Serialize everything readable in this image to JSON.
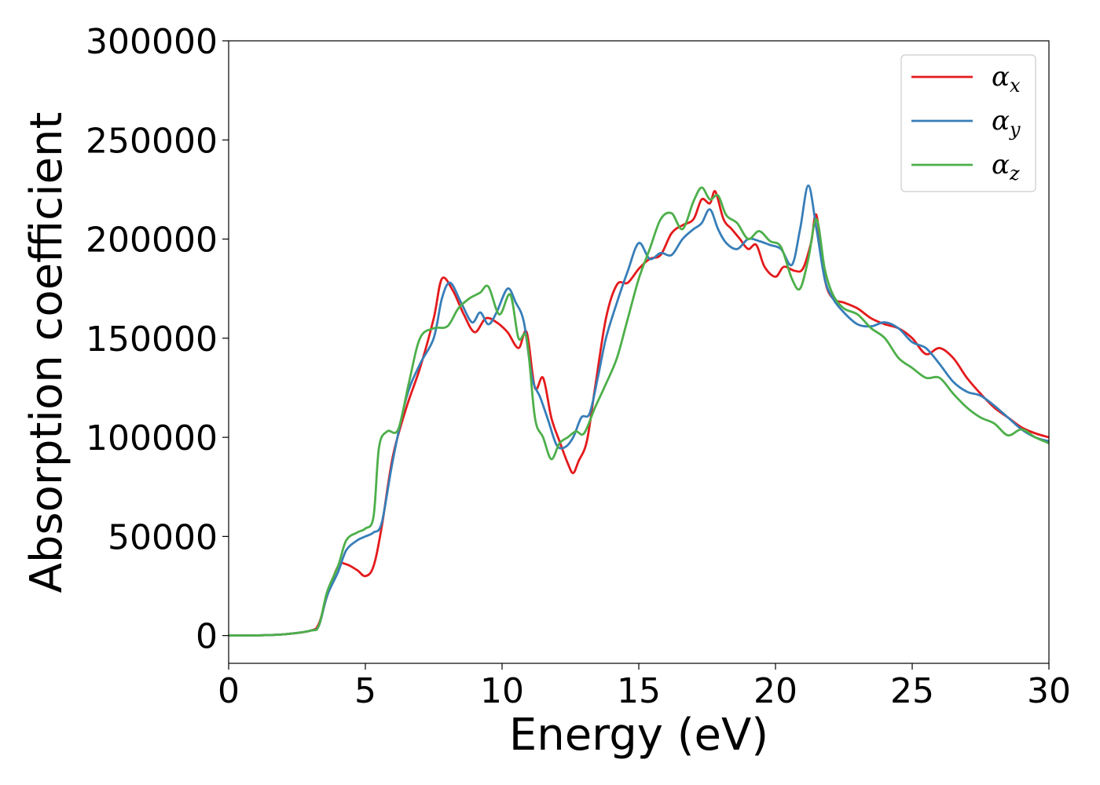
{
  "chart_data": {
    "type": "line",
    "xlabel": "Energy (eV)",
    "ylabel": "Absorption coefficient",
    "xlim": [
      0,
      30
    ],
    "ylim": [
      -14000,
      300000
    ],
    "xticks": [
      0,
      5,
      10,
      15,
      20,
      25,
      30
    ],
    "xtick_labels": [
      "0",
      "5",
      "10",
      "15",
      "20",
      "25",
      "30"
    ],
    "yticks": [
      0,
      50000,
      100000,
      150000,
      200000,
      250000,
      300000
    ],
    "ytick_labels": [
      "0",
      "50000",
      "100000",
      "150000",
      "200000",
      "250000",
      "300000"
    ],
    "grid": false,
    "legend_position": "top-right",
    "series": [
      {
        "name": "α_x",
        "base": "α",
        "sub": "x",
        "color": "#e41a1c",
        "x": [
          0,
          1,
          2,
          3,
          3.3,
          3.6,
          4.0,
          4.3,
          4.7,
          5.0,
          5.3,
          5.6,
          6.0,
          6.5,
          7.0,
          7.5,
          7.8,
          8.2,
          8.6,
          9.0,
          9.4,
          9.8,
          10.2,
          10.6,
          10.9,
          11.2,
          11.5,
          11.8,
          12.1,
          12.4,
          12.6,
          12.8,
          13.1,
          13.4,
          13.8,
          14.2,
          14.6,
          15.0,
          15.4,
          15.8,
          16.2,
          16.6,
          17.0,
          17.3,
          17.6,
          17.8,
          18.1,
          18.4,
          18.7,
          19.0,
          19.3,
          19.6,
          20.0,
          20.3,
          20.7,
          21.0,
          21.3,
          21.5,
          21.8,
          22.1,
          22.5,
          23.0,
          23.5,
          24.0,
          24.5,
          25.0,
          25.5,
          26.0,
          26.5,
          27.0,
          27.5,
          28.0,
          28.5,
          29.0,
          29.5,
          30.0
        ],
        "y": [
          0,
          100,
          600,
          2500,
          6000,
          20000,
          35000,
          36000,
          33000,
          30000,
          35000,
          55000,
          90000,
          115000,
          135000,
          160000,
          180000,
          174000,
          162000,
          153000,
          160000,
          158000,
          153000,
          145000,
          153000,
          125000,
          130000,
          110000,
          98000,
          87000,
          82000,
          88000,
          98000,
          125000,
          160000,
          177000,
          178000,
          185000,
          190000,
          192000,
          203000,
          207000,
          210000,
          220000,
          218000,
          224000,
          210000,
          205000,
          200000,
          195000,
          197000,
          186000,
          181000,
          186000,
          184000,
          185000,
          198000,
          212000,
          180000,
          170000,
          168000,
          165000,
          160000,
          157000,
          155000,
          150000,
          142000,
          145000,
          140000,
          130000,
          122000,
          115000,
          110000,
          105000,
          102000,
          100000
        ]
      },
      {
        "name": "α_y",
        "base": "α",
        "sub": "y",
        "color": "#377eb8",
        "x": [
          0,
          1,
          2,
          3,
          3.3,
          3.6,
          4.0,
          4.3,
          4.7,
          5.0,
          5.3,
          5.6,
          6.0,
          6.5,
          7.0,
          7.5,
          7.8,
          8.1,
          8.5,
          8.9,
          9.2,
          9.5,
          9.8,
          10.2,
          10.5,
          10.8,
          11.1,
          11.4,
          11.7,
          12.0,
          12.3,
          12.6,
          12.9,
          13.2,
          13.5,
          13.8,
          14.2,
          14.6,
          15.0,
          15.4,
          15.8,
          16.2,
          16.6,
          17.0,
          17.3,
          17.6,
          17.9,
          18.2,
          18.6,
          19.0,
          19.4,
          19.8,
          20.2,
          20.6,
          20.9,
          21.2,
          21.5,
          21.8,
          22.1,
          22.5,
          23.0,
          23.5,
          24.0,
          24.5,
          25.0,
          25.5,
          26.0,
          26.5,
          27.0,
          27.5,
          28.0,
          28.5,
          29.0,
          29.5,
          30.0
        ],
        "y": [
          0,
          100,
          600,
          2500,
          5000,
          20000,
          32000,
          43000,
          48000,
          50000,
          52000,
          57000,
          88000,
          120000,
          137000,
          150000,
          170000,
          178000,
          168000,
          158000,
          163000,
          157000,
          163000,
          175000,
          168000,
          158000,
          130000,
          120000,
          108000,
          96000,
          95000,
          100000,
          110000,
          112000,
          130000,
          150000,
          168000,
          184000,
          198000,
          190000,
          193000,
          192000,
          200000,
          205000,
          208000,
          215000,
          205000,
          198000,
          195000,
          200000,
          199000,
          197000,
          195000,
          187000,
          205000,
          227000,
          205000,
          180000,
          170000,
          163000,
          157000,
          156000,
          158000,
          155000,
          148000,
          145000,
          137000,
          128000,
          123000,
          121000,
          116000,
          110000,
          104000,
          100000,
          98000
        ]
      },
      {
        "name": "α_z",
        "base": "α",
        "sub": "z",
        "color": "#4daf4a",
        "x": [
          0,
          1,
          2,
          3,
          3.3,
          3.6,
          4.0,
          4.3,
          4.7,
          5.0,
          5.3,
          5.5,
          5.8,
          6.2,
          6.6,
          7.0,
          7.5,
          8.0,
          8.4,
          8.8,
          9.2,
          9.5,
          9.9,
          10.3,
          10.6,
          10.9,
          11.2,
          11.5,
          11.8,
          12.1,
          12.4,
          12.7,
          13.0,
          13.4,
          13.8,
          14.2,
          14.6,
          15.0,
          15.4,
          15.8,
          16.2,
          16.6,
          17.0,
          17.3,
          17.6,
          17.9,
          18.2,
          18.6,
          19.0,
          19.4,
          19.8,
          20.2,
          20.6,
          20.9,
          21.2,
          21.5,
          21.8,
          22.1,
          22.5,
          23.0,
          23.5,
          24.0,
          24.5,
          25.0,
          25.5,
          26.0,
          26.5,
          27.0,
          27.5,
          28.0,
          28.5,
          29.0,
          29.5,
          30.0
        ],
        "y": [
          0,
          100,
          600,
          2500,
          5000,
          22000,
          35000,
          48000,
          52000,
          54000,
          60000,
          95000,
          103000,
          104000,
          128000,
          150000,
          155000,
          156000,
          165000,
          170000,
          173000,
          176000,
          162000,
          172000,
          150000,
          150000,
          110000,
          100000,
          89000,
          97000,
          100000,
          103000,
          102000,
          115000,
          127000,
          140000,
          160000,
          180000,
          195000,
          210000,
          213000,
          205000,
          219000,
          226000,
          220000,
          222000,
          212000,
          208000,
          200000,
          204000,
          199000,
          196000,
          180000,
          175000,
          190000,
          210000,
          185000,
          172000,
          165000,
          162000,
          155000,
          150000,
          140000,
          135000,
          130000,
          130000,
          122000,
          115000,
          110000,
          107000,
          101000,
          104000,
          100000,
          97000
        ]
      }
    ]
  }
}
